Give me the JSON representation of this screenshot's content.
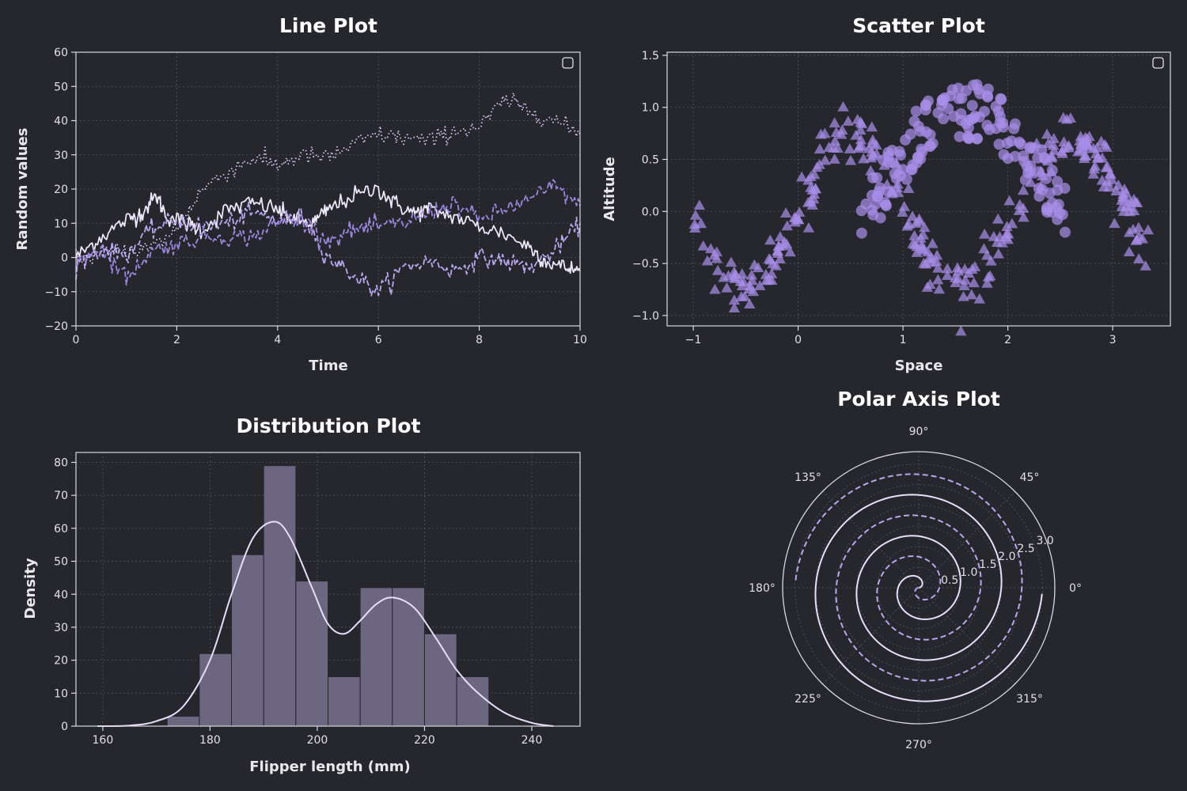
{
  "colors": {
    "background": "#26272d",
    "text": "#e8e8ec",
    "lavender_light": "#e6defa",
    "lavender": "#b9a6ee",
    "lavender_mid": "#9d86df",
    "violet": "#a78ee8",
    "bar_fill": "#6c6680",
    "grid": "#55565e"
  },
  "chart_data": [
    {
      "id": "line",
      "type": "line",
      "title": "Line Plot",
      "xlabel": "Time",
      "ylabel": "Random values",
      "xlim": [
        0,
        10
      ],
      "ylim": [
        -20,
        60
      ],
      "xticks": [
        0,
        2,
        4,
        6,
        8,
        10
      ],
      "xtick_labels": [
        "0",
        "2",
        "4",
        "6",
        "8",
        "10"
      ],
      "yticks": [
        -20,
        -10,
        0,
        10,
        20,
        30,
        40,
        50,
        60
      ],
      "ytick_labels": [
        "−20",
        "−10",
        "0",
        "10",
        "20",
        "30",
        "40",
        "50",
        "60"
      ],
      "grid": true,
      "legend_placement": "top-right",
      "legend_entries": [],
      "series": [
        {
          "style": "solid",
          "color": "#ece6fb",
          "x": [
            0,
            0.5,
            1,
            1.3,
            1.6,
            1.8,
            2.2,
            2.5,
            3,
            3.5,
            4,
            4.3,
            4.7,
            5,
            5.5,
            6,
            6.3,
            6.7,
            7,
            7.5,
            8,
            8.5,
            9,
            9.3,
            9.7,
            10
          ],
          "y": [
            0,
            6,
            11,
            13,
            18,
            12,
            10,
            8,
            14,
            16,
            14,
            11,
            10,
            14,
            18,
            20,
            16,
            13,
            14,
            12,
            9,
            7,
            3,
            -1,
            -3,
            -4
          ]
        },
        {
          "style": "dashed",
          "color": "#b9a6ee",
          "x": [
            0,
            0.5,
            1,
            1.5,
            2,
            2.5,
            3,
            3.5,
            4,
            4.5,
            5,
            5.5,
            6,
            6.5,
            7,
            7.5,
            8,
            8.5,
            9,
            9.5,
            10
          ],
          "y": [
            -2,
            2,
            1,
            8,
            11,
            9,
            10,
            13,
            11,
            12,
            0,
            -5,
            -10,
            -3,
            -1,
            -4,
            0,
            -1,
            -3,
            2,
            10
          ]
        },
        {
          "style": "dotted",
          "color": "#d4c9f6",
          "x": [
            0,
            0.5,
            1,
            1.5,
            2,
            2.5,
            3,
            3.5,
            4,
            4.5,
            5,
            5.5,
            6,
            6.5,
            7,
            7.5,
            8,
            8.5,
            9,
            9.5,
            10
          ],
          "y": [
            0,
            1,
            2,
            3,
            8,
            20,
            25,
            29,
            27,
            30,
            29,
            33,
            36,
            35,
            34,
            37,
            38,
            46,
            43,
            40,
            36
          ]
        },
        {
          "style": "dashed",
          "color": "#9d86df",
          "x": [
            0,
            0.5,
            1,
            1.5,
            2,
            2.5,
            3,
            3.5,
            4,
            4.5,
            5,
            5.5,
            6,
            6.5,
            7,
            7.5,
            8,
            8.5,
            9,
            9.5,
            10
          ],
          "y": [
            -1,
            3,
            -6,
            2,
            4,
            6,
            6,
            6,
            10,
            11,
            5,
            8,
            9,
            10,
            13,
            16,
            11,
            14,
            17,
            21,
            15
          ]
        }
      ]
    },
    {
      "id": "scatter",
      "type": "scatter",
      "title": "Scatter Plot",
      "xlabel": "Space",
      "ylabel": "Altitude",
      "xlim": [
        -1.25,
        3.55
      ],
      "ylim": [
        -1.1,
        1.53
      ],
      "xticks": [
        -1,
        0,
        1,
        2,
        3
      ],
      "xtick_labels": [
        "−1",
        "0",
        "1",
        "2",
        "3"
      ],
      "yticks": [
        -1.0,
        -0.5,
        0.0,
        0.5,
        1.0,
        1.5
      ],
      "ytick_labels": [
        "−1.0",
        "−0.5",
        "0.0",
        "0.5",
        "1.0",
        "1.5"
      ],
      "grid": true,
      "legend_placement": "top-right",
      "legend_entries": [],
      "series": [
        {
          "marker": "triangle",
          "color": "#a78ee8",
          "count": 300,
          "x_range": [
            -1.0,
            3.35
          ],
          "shape": "sin(3x)"
        },
        {
          "marker": "circle",
          "color": "#a78ee8",
          "count": 150,
          "x_range": [
            0.6,
            2.55
          ],
          "shape": "cos-cap"
        }
      ]
    },
    {
      "id": "hist",
      "type": "bar",
      "title": "Distribution Plot",
      "xlabel": "Flipper length (mm)",
      "ylabel": "Density",
      "xlim": [
        155,
        249
      ],
      "ylim": [
        0,
        83
      ],
      "xticks": [
        160,
        180,
        200,
        220,
        240
      ],
      "xtick_labels": [
        "160",
        "180",
        "200",
        "220",
        "240"
      ],
      "yticks": [
        0,
        10,
        20,
        30,
        40,
        50,
        60,
        70,
        80
      ],
      "ytick_labels": [
        "0",
        "10",
        "20",
        "30",
        "40",
        "50",
        "60",
        "70",
        "80"
      ],
      "grid": true,
      "bin_edges": [
        172,
        178,
        184,
        190,
        196,
        202,
        208,
        214,
        220,
        226,
        232
      ],
      "values": [
        3,
        22,
        52,
        79,
        44,
        15,
        42,
        42,
        28,
        15
      ],
      "kde": {
        "x": [
          159,
          165,
          170,
          175,
          180,
          184,
          188,
          192,
          195,
          199,
          202,
          205,
          208,
          211,
          214,
          218,
          222,
          226,
          230,
          235,
          240,
          244
        ],
        "y": [
          0,
          0.2,
          1.5,
          6,
          20,
          40,
          57,
          62,
          57,
          42,
          31,
          28,
          32,
          37,
          39,
          36,
          27,
          17,
          10,
          4,
          1,
          0
        ]
      }
    },
    {
      "id": "polar",
      "type": "line",
      "title": "Polar Axis Plot",
      "angle_labels": [
        "0°",
        "45°",
        "90°",
        "135°",
        "180°",
        "225°",
        "270°",
        "315°"
      ],
      "radial_ticks": [
        0.5,
        1.0,
        1.5,
        2.0,
        2.5,
        3.0
      ],
      "radial_tick_labels": [
        "0.5",
        "1.0",
        "1.5",
        "2.0",
        "2.5",
        "3.0"
      ],
      "rmax": 3.3,
      "series": [
        {
          "style": "solid",
          "color": "#e6defa",
          "function": "r = theta / (2*pi)",
          "theta_turns": [
            0,
            3
          ]
        },
        {
          "style": "dashed",
          "color": "#b9a6ee",
          "function": "r = theta / (2*pi)",
          "theta_turns": [
            0,
            3
          ],
          "theta_offset_deg": 180
        }
      ]
    }
  ]
}
